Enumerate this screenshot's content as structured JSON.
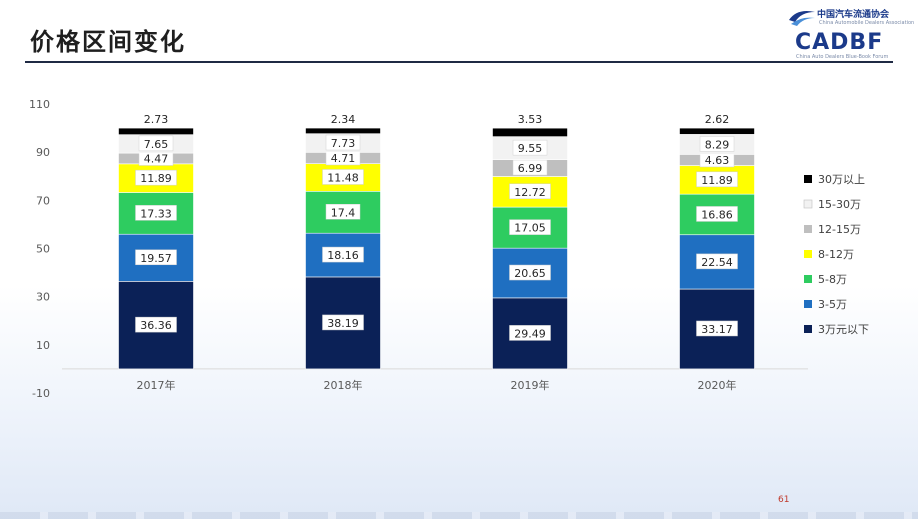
{
  "slide": {
    "title": "价格区间变化",
    "page_number": "61"
  },
  "logo": {
    "cn": "中国汽车流通协会",
    "en_small": "China Automobile Dealers Association",
    "mark": "CADBF",
    "sub": "China Auto Dealers Blue-Book Forum"
  },
  "colors": {
    "30万以上": "#000000",
    "15-30万": "#f2f2f2",
    "12-15万": "#bfbfbf",
    "8-12万": "#ffff00",
    "5-8万": "#2ecc60",
    "3-5万": "#1f6fc1",
    "3万元以下": "#0b2157"
  },
  "chart_data": {
    "type": "bar",
    "stacked": true,
    "categories": [
      "2017年",
      "2018年",
      "2019年",
      "2020年"
    ],
    "ylim": [
      -10,
      110
    ],
    "yticks": [
      "110",
      "90",
      "70",
      "50",
      "30",
      "10",
      "-10"
    ],
    "ytick_values": [
      110,
      90,
      70,
      50,
      30,
      10,
      -10
    ],
    "legend_position": "right",
    "series": [
      {
        "name": "3万元以下",
        "values": [
          36.36,
          38.19,
          29.49,
          33.17
        ],
        "labels": [
          "36.36",
          "38.19",
          "29.49",
          "33.17"
        ]
      },
      {
        "name": "3-5万",
        "values": [
          19.57,
          18.16,
          20.65,
          22.54
        ],
        "labels": [
          "19.57",
          "18.16",
          "20.65",
          "22.54"
        ]
      },
      {
        "name": "5-8万",
        "values": [
          17.33,
          17.4,
          17.05,
          16.86
        ],
        "labels": [
          "17.33",
          "17.4",
          "17.05",
          "16.86"
        ]
      },
      {
        "name": "8-12万",
        "values": [
          11.89,
          11.48,
          12.72,
          11.89
        ],
        "labels": [
          "11.89",
          "11.48",
          "12.72",
          "11.89"
        ]
      },
      {
        "name": "12-15万",
        "values": [
          4.47,
          4.71,
          6.99,
          4.63
        ],
        "labels": [
          "4.47",
          "4.71",
          "6.99",
          "4.63"
        ]
      },
      {
        "name": "15-30万",
        "values": [
          7.65,
          7.73,
          9.55,
          8.29
        ],
        "labels": [
          "7.65",
          "7.73",
          "9.55",
          "8.29"
        ]
      },
      {
        "name": "30万以上",
        "values": [
          2.73,
          2.34,
          3.53,
          2.62
        ],
        "labels": [
          "2.73",
          "2.34",
          "3.53",
          "2.62"
        ]
      }
    ]
  }
}
